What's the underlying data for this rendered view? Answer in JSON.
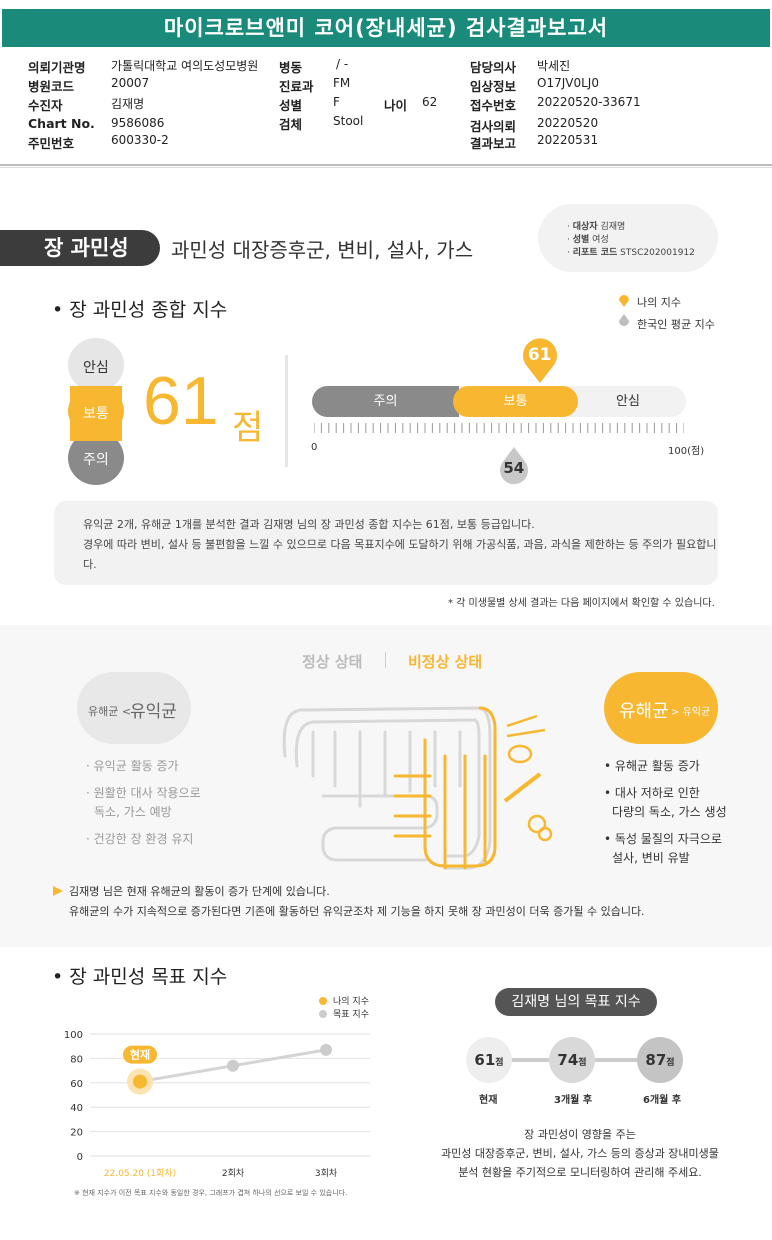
{
  "report_title": "마이크로브앤미 코어(장내세균) 검사결과보고서",
  "header": {
    "col1": [
      {
        "label": "의뢰기관명",
        "value": "가톨릭대학교 여의도성모병원"
      },
      {
        "label": "병원코드",
        "value": "20007"
      },
      {
        "label": "수진자",
        "value": "김재명"
      },
      {
        "label": "Chart No.",
        "value": "9586086"
      },
      {
        "label": "주민번호",
        "value": "600330-2"
      }
    ],
    "col2": [
      {
        "label": "병동",
        "value": "/ -"
      },
      {
        "label": "진료과",
        "value": "FM"
      },
      {
        "label": "성별",
        "value": "F"
      },
      {
        "label": "검체",
        "value": "Stool"
      }
    ],
    "age": {
      "label": "나이",
      "value": "62"
    },
    "col3": [
      {
        "label": "담당의사",
        "value": "박세진"
      },
      {
        "label": "임상정보",
        "value": "O17JV0LJ0"
      },
      {
        "label": "접수번호",
        "value": "20220520-33671"
      },
      {
        "label": "검사의뢰",
        "value": "20220520"
      },
      {
        "label": "결과보고",
        "value": "20220531"
      }
    ]
  },
  "section1": {
    "pill": "장 과민성",
    "subtitle": "과민성 대장증후군, 변비, 설사, 가스",
    "subject": [
      {
        "label": "대상자",
        "value": "김재명"
      },
      {
        "label": "성별",
        "value": "여성"
      },
      {
        "label": "리포트 코드",
        "value": "STSC202001912"
      }
    ]
  },
  "index": {
    "heading": "장 과민성 종합 지수",
    "legend_mine": "나의 지수",
    "legend_avg": "한국인 평균 지수",
    "levels": [
      "안심",
      "보통",
      "주의"
    ],
    "score": "61",
    "score_unit": "점",
    "bar_labels": [
      "주의",
      "보통",
      "안심"
    ],
    "my_value": 61,
    "avg_value": 54,
    "my_label": "61",
    "avg_label": "54",
    "axis_min": "0",
    "axis_max": "100(점)",
    "info_lines": [
      "유익균 2개, 유해균 1개를 분석한 결과 김재명 님의 장 과민성 종합 지수는 61점, 보통 등급입니다.",
      "경우에 따라 변비, 설사 등 불편함을 느낄 수 있으므로 다음 목표지수에 도달하기 위해 가공식품, 과음, 과식을 제한하는 등 주의가 필요합니",
      "다."
    ],
    "note": "* 각 미생물별 상세 결과는 다음 페이지에서 확인할 수 있습니다."
  },
  "state": {
    "normal": "정상 상태",
    "abnormal": "비정상 상태",
    "good_small": "유해균 <",
    "good_big": "유익균",
    "bad_big": "유해균",
    "bad_small": "> 유익균",
    "good_list": [
      "유익균 활동 증가",
      "원활한 대사 작용으로",
      "독소, 가스 예방",
      "건강한 장 환경 유지"
    ],
    "bad_list": [
      "유해균 활동 증가",
      "대사 저하로 인한",
      "다량의 독소, 가스 생성",
      "독성 물질의 자극으로",
      "설사, 변비 유발"
    ],
    "summary": [
      "김재명 님은 현재 유해균의 활동이 증가 단계에 있습니다.",
      "유해균의 수가 지속적으로 증가된다면 기존에 활동하던 유익균조차 제 기능을 하지 못해 장 과민성이 더욱 증가될 수 있습니다."
    ]
  },
  "goal": {
    "heading": "장 과민성 목표 지수",
    "title": "김재명 님의 목표 지수",
    "steps": [
      {
        "value": "61",
        "unit": "점",
        "label": "현재"
      },
      {
        "value": "74",
        "unit": "점",
        "label": "3개월 후"
      },
      {
        "value": "87",
        "unit": "점",
        "label": "6개월 후"
      }
    ],
    "desc": [
      "장 과민성이 영향을 주는",
      "과민성 대장증후군, 변비, 설사, 가스 등의 증상과 장내미생물",
      "분석 현황을 주기적으로 모니터링하여 관리해 주세요."
    ]
  },
  "chart_data": {
    "type": "line",
    "categories": [
      "22.05.20 (1회차)",
      "2회차",
      "3회차"
    ],
    "series": [
      {
        "name": "나의 지수",
        "values": [
          61,
          null,
          null
        ],
        "color": "#f7b731"
      },
      {
        "name": "목표 지수",
        "values": [
          61,
          74,
          87
        ],
        "color": "#cccccc"
      }
    ],
    "ylim": [
      0,
      100
    ],
    "yticks": [
      "100",
      "80",
      "60",
      "40",
      "20",
      "0"
    ],
    "current_label": "현재",
    "legend": [
      "나의 지수",
      "목표 지수"
    ],
    "note": "※ 현재 지수가 이전 목표 지수와 동일한 경우, 그래프가 겹쳐 하나의 선으로 보일 수 있습니다."
  },
  "colors": {
    "accent": "#f7b731",
    "teal": "#1a8a7a",
    "dark": "#3c3c3c",
    "gray": "#888888"
  }
}
